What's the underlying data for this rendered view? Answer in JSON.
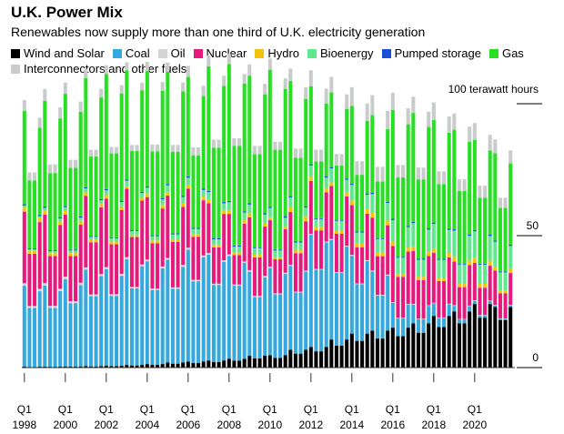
{
  "chart_data": {
    "type": "bar",
    "stacked": true,
    "title": "U.K. Power Mix",
    "subtitle": "Renewables now supply more than one third of U.K. electricity generation",
    "y_unit_label": "100 terawatt hours",
    "ylim": [
      0,
      100
    ],
    "y_ticks": [
      {
        "value": 0,
        "label": "0"
      },
      {
        "value": 50,
        "label": "50"
      },
      {
        "value": 100,
        "label": ""
      }
    ],
    "grid": false,
    "legend_placement": "top-left",
    "x_start_year": 1998,
    "x_end_year": 2021,
    "x_ticks": [
      {
        "q": "Q1",
        "year": "1998"
      },
      {
        "q": "Q1",
        "year": "2000"
      },
      {
        "q": "Q1",
        "year": "2002"
      },
      {
        "q": "Q1",
        "year": "2004"
      },
      {
        "q": "Q1",
        "year": "2006"
      },
      {
        "q": "Q1",
        "year": "2008"
      },
      {
        "q": "Q1",
        "year": "2010"
      },
      {
        "q": "Q1",
        "year": "2012"
      },
      {
        "q": "Q1",
        "year": "2014"
      },
      {
        "q": "Q1",
        "year": "2016"
      },
      {
        "q": "Q1",
        "year": "2018"
      },
      {
        "q": "Q1",
        "year": "2020"
      }
    ],
    "series": [
      {
        "name": "Wind and Solar",
        "color": "#000000",
        "annual": [
          0.3,
          0.35,
          0.4,
          0.5,
          0.6,
          0.9,
          1.2,
          1.7,
          2.0,
          2.4,
          3.0,
          4.0,
          4.2,
          6.0,
          7.0,
          9.5,
          11.5,
          12.5,
          13.5,
          15.0,
          17.5,
          19.0,
          21.5,
          20.5
        ]
      },
      {
        "name": "Coal",
        "color": "#35a8e0",
        "annual": [
          26,
          26,
          28,
          31,
          31,
          34,
          33,
          33,
          36,
          34,
          33,
          27,
          28,
          27,
          36,
          32,
          25,
          19,
          8,
          6,
          4,
          1.8,
          1,
          0.5
        ]
      },
      {
        "name": "Oil",
        "color": "#d4d4d4",
        "annual": [
          0.8,
          0.8,
          0.8,
          0.7,
          0.7,
          0.6,
          0.6,
          0.6,
          0.6,
          0.5,
          0.5,
          0.5,
          0.4,
          0.3,
          0.3,
          0.3,
          0.3,
          0.3,
          0.2,
          0.2,
          0.2,
          0.2,
          0.2,
          0.2
        ]
      },
      {
        "name": "Nuclear",
        "color": "#e6197c",
        "annual": [
          23,
          22,
          20,
          23,
          22,
          22,
          20,
          20,
          19,
          16,
          13,
          17,
          15,
          17,
          17,
          17,
          16,
          17,
          18,
          17,
          16,
          14,
          12,
          11
        ]
      },
      {
        "name": "Hydro",
        "color": "#f4c20d",
        "annual": [
          1.3,
          1.3,
          1.3,
          1.1,
          1.2,
          0.8,
          1.2,
          1.2,
          1.2,
          1.3,
          1.3,
          1.3,
          0.9,
          1.5,
          1.4,
          1.2,
          1.5,
          1.6,
          1.4,
          1.5,
          1.4,
          1.5,
          1.7,
          1.3
        ]
      },
      {
        "name": "Bioenergy",
        "color": "#5fe88e",
        "annual": [
          0.7,
          0.9,
          1.1,
          1.3,
          1.5,
          1.8,
          1.9,
          2.2,
          2.3,
          2.3,
          2.5,
          2.8,
          3.0,
          3.2,
          3.6,
          4.5,
          5.0,
          6.0,
          7.0,
          7.5,
          8.0,
          8.5,
          8.5,
          8.0
        ]
      },
      {
        "name": "Pumped storage",
        "color": "#1b4fd6",
        "annual": [
          0.4,
          0.4,
          0.4,
          0.4,
          0.4,
          0.4,
          0.4,
          0.4,
          0.4,
          0.4,
          0.4,
          0.4,
          0.4,
          0.4,
          0.4,
          0.4,
          0.4,
          0.4,
          0.4,
          0.4,
          0.4,
          0.4,
          0.4,
          0.4
        ]
      },
      {
        "name": "Gas",
        "color": "#27e024",
        "annual": [
          30,
          34,
          36,
          35,
          37,
          35,
          37,
          36,
          32,
          40,
          44,
          41,
          44,
          37,
          25,
          24,
          25,
          25,
          35,
          35,
          33,
          32,
          29,
          28
        ]
      },
      {
        "name": "Interconnectors and other fuels",
        "color": "#c8cccb",
        "annual": [
          3.5,
          3.8,
          3.6,
          3.0,
          2.8,
          2.6,
          3.0,
          3.0,
          3.5,
          3.5,
          3.3,
          3.6,
          3.6,
          4.0,
          5.2,
          5.0,
          6.0,
          6.4,
          5.5,
          5.2,
          5.6,
          5.2,
          5.4,
          4.5
        ]
      }
    ],
    "seasonal_factors": [
      1.18,
      0.86,
      0.86,
      1.1
    ]
  }
}
